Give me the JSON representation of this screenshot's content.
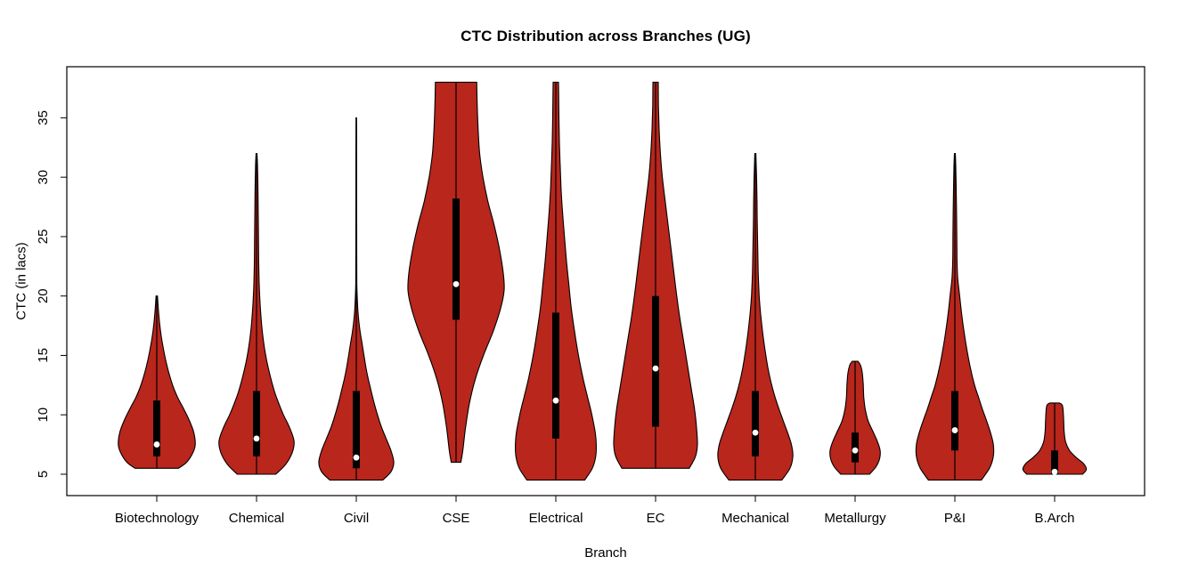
{
  "chart_data": {
    "type": "violin",
    "title": "CTC Distribution across Branches (UG)",
    "xlabel": "Branch",
    "ylabel": "CTC (in lacs)",
    "ylim": [
      3.2,
      39.3
    ],
    "yticks": [
      5,
      10,
      15,
      20,
      25,
      30,
      35
    ],
    "grid": false,
    "legend": "none",
    "colors": {
      "violin_fill": "#b8261c",
      "violin_outline": "#000000",
      "box": "#000000",
      "median_dot": "#ffffff",
      "axis": "#000000",
      "background": "#ffffff"
    },
    "categories": [
      "Biotechnology",
      "Chemical",
      "Civil",
      "CSE",
      "Electrical",
      "EC",
      "Mechanical",
      "Metallurgy",
      "P&I",
      "B.Arch"
    ],
    "series": [
      {
        "name": "Biotechnology",
        "min": 5.5,
        "q1": 6.5,
        "median": 7.5,
        "q3": 11.2,
        "max": 20,
        "shape": [
          [
            5.5,
            0.45
          ],
          [
            6,
            0.62
          ],
          [
            6.8,
            0.75
          ],
          [
            7.5,
            0.8
          ],
          [
            8.5,
            0.77
          ],
          [
            9.5,
            0.68
          ],
          [
            10.5,
            0.56
          ],
          [
            11.5,
            0.43
          ],
          [
            12.5,
            0.33
          ],
          [
            14,
            0.22
          ],
          [
            15.5,
            0.14
          ],
          [
            17,
            0.08
          ],
          [
            18.5,
            0.04
          ],
          [
            20,
            0.015
          ]
        ]
      },
      {
        "name": "Chemical",
        "min": 5.0,
        "q1": 6.5,
        "median": 8.0,
        "q3": 12.0,
        "max": 32,
        "shape": [
          [
            5,
            0.4
          ],
          [
            5.8,
            0.6
          ],
          [
            6.8,
            0.74
          ],
          [
            7.8,
            0.78
          ],
          [
            9,
            0.68
          ],
          [
            10,
            0.56
          ],
          [
            11,
            0.46
          ],
          [
            12,
            0.37
          ],
          [
            13.5,
            0.27
          ],
          [
            15,
            0.19
          ],
          [
            17,
            0.12
          ],
          [
            19,
            0.08
          ],
          [
            21,
            0.055
          ],
          [
            23,
            0.045
          ],
          [
            25,
            0.04
          ],
          [
            27,
            0.035
          ],
          [
            29,
            0.03
          ],
          [
            31,
            0.02
          ],
          [
            32,
            0.01
          ]
        ]
      },
      {
        "name": "Civil",
        "min": 4.5,
        "q1": 5.5,
        "median": 6.4,
        "q3": 12.0,
        "max": 35,
        "shape": [
          [
            4.5,
            0.55
          ],
          [
            5.2,
            0.72
          ],
          [
            6,
            0.78
          ],
          [
            7,
            0.72
          ],
          [
            8,
            0.62
          ],
          [
            9,
            0.52
          ],
          [
            10,
            0.44
          ],
          [
            11,
            0.37
          ],
          [
            12,
            0.31
          ],
          [
            13,
            0.25
          ],
          [
            14,
            0.2
          ],
          [
            15,
            0.16
          ],
          [
            16,
            0.12
          ],
          [
            17,
            0.08
          ],
          [
            18,
            0.05
          ],
          [
            19,
            0.03
          ],
          [
            21,
            0.012
          ],
          [
            24,
            0.009
          ],
          [
            28,
            0.008
          ],
          [
            32,
            0.007
          ],
          [
            35,
            0.005
          ]
        ]
      },
      {
        "name": "CSE",
        "min": 6.0,
        "q1": 18.0,
        "median": 21.0,
        "q3": 28.2,
        "max": 38,
        "shape": [
          [
            6,
            0.1
          ],
          [
            7,
            0.14
          ],
          [
            9,
            0.2
          ],
          [
            11,
            0.28
          ],
          [
            13,
            0.4
          ],
          [
            15,
            0.57
          ],
          [
            17,
            0.77
          ],
          [
            19,
            0.93
          ],
          [
            20.5,
            1.0
          ],
          [
            22,
            0.98
          ],
          [
            24,
            0.9
          ],
          [
            26,
            0.79
          ],
          [
            28,
            0.66
          ],
          [
            30,
            0.56
          ],
          [
            32,
            0.49
          ],
          [
            34,
            0.46
          ],
          [
            36,
            0.44
          ],
          [
            38,
            0.43
          ]
        ]
      },
      {
        "name": "Electrical",
        "min": 4.5,
        "q1": 8.0,
        "median": 11.2,
        "q3": 18.6,
        "max": 38,
        "shape": [
          [
            4.5,
            0.6
          ],
          [
            5.5,
            0.76
          ],
          [
            6.5,
            0.83
          ],
          [
            7.5,
            0.84
          ],
          [
            8.5,
            0.82
          ],
          [
            10,
            0.75
          ],
          [
            11.5,
            0.66
          ],
          [
            13,
            0.57
          ],
          [
            15,
            0.47
          ],
          [
            17,
            0.39
          ],
          [
            19,
            0.32
          ],
          [
            21,
            0.27
          ],
          [
            23,
            0.22
          ],
          [
            25,
            0.18
          ],
          [
            27,
            0.14
          ],
          [
            29,
            0.11
          ],
          [
            31,
            0.09
          ],
          [
            33,
            0.075
          ],
          [
            35,
            0.065
          ],
          [
            37,
            0.06
          ],
          [
            38,
            0.055
          ]
        ]
      },
      {
        "name": "EC",
        "min": 5.5,
        "q1": 9.0,
        "median": 13.9,
        "q3": 20.0,
        "max": 38,
        "shape": [
          [
            5.5,
            0.7
          ],
          [
            6.5,
            0.83
          ],
          [
            7.5,
            0.87
          ],
          [
            9,
            0.85
          ],
          [
            10.5,
            0.81
          ],
          [
            12,
            0.75
          ],
          [
            14,
            0.67
          ],
          [
            16,
            0.59
          ],
          [
            18,
            0.51
          ],
          [
            20,
            0.44
          ],
          [
            22,
            0.38
          ],
          [
            24,
            0.32
          ],
          [
            26,
            0.26
          ],
          [
            28,
            0.2
          ],
          [
            30,
            0.14
          ],
          [
            32,
            0.1
          ],
          [
            34,
            0.075
          ],
          [
            36,
            0.06
          ],
          [
            38,
            0.055
          ]
        ]
      },
      {
        "name": "Mechanical",
        "min": 4.5,
        "q1": 6.5,
        "median": 8.5,
        "q3": 12.0,
        "max": 32,
        "shape": [
          [
            4.5,
            0.55
          ],
          [
            5.5,
            0.72
          ],
          [
            6.5,
            0.78
          ],
          [
            7.5,
            0.75
          ],
          [
            8.5,
            0.67
          ],
          [
            9.5,
            0.58
          ],
          [
            10.5,
            0.49
          ],
          [
            11.5,
            0.41
          ],
          [
            12.5,
            0.34
          ],
          [
            14,
            0.26
          ],
          [
            15.5,
            0.2
          ],
          [
            17,
            0.15
          ],
          [
            18.5,
            0.11
          ],
          [
            20,
            0.08
          ],
          [
            22,
            0.06
          ],
          [
            24,
            0.05
          ],
          [
            26,
            0.04
          ],
          [
            28,
            0.035
          ],
          [
            30,
            0.025
          ],
          [
            32,
            0.012
          ]
        ]
      },
      {
        "name": "Metallurgy",
        "min": 5.0,
        "q1": 6.0,
        "median": 7.0,
        "q3": 8.5,
        "max": 14.5,
        "shape": [
          [
            5,
            0.3
          ],
          [
            5.6,
            0.43
          ],
          [
            6.3,
            0.51
          ],
          [
            7,
            0.52
          ],
          [
            7.8,
            0.46
          ],
          [
            8.6,
            0.37
          ],
          [
            9.5,
            0.27
          ],
          [
            10.5,
            0.21
          ],
          [
            11.5,
            0.18
          ],
          [
            12.5,
            0.17
          ],
          [
            13.5,
            0.15
          ],
          [
            14.2,
            0.11
          ],
          [
            14.5,
            0.06
          ]
        ]
      },
      {
        "name": "P&I",
        "min": 4.5,
        "q1": 7.0,
        "median": 8.7,
        "q3": 12.0,
        "max": 32,
        "shape": [
          [
            4.5,
            0.55
          ],
          [
            5.5,
            0.72
          ],
          [
            6.5,
            0.8
          ],
          [
            7.5,
            0.8
          ],
          [
            8.5,
            0.74
          ],
          [
            9.5,
            0.66
          ],
          [
            10.5,
            0.57
          ],
          [
            11.5,
            0.49
          ],
          [
            12.5,
            0.41
          ],
          [
            14,
            0.32
          ],
          [
            15.5,
            0.25
          ],
          [
            17,
            0.19
          ],
          [
            18.5,
            0.14
          ],
          [
            20,
            0.1
          ],
          [
            21.5,
            0.06
          ],
          [
            23,
            0.045
          ],
          [
            25,
            0.04
          ],
          [
            27,
            0.035
          ],
          [
            29,
            0.028
          ],
          [
            31,
            0.018
          ],
          [
            32,
            0.01
          ]
        ]
      },
      {
        "name": "B.Arch",
        "min": 5.0,
        "q1": 5.0,
        "median": 5.2,
        "q3": 7.0,
        "max": 11,
        "shape": [
          [
            5,
            0.58
          ],
          [
            5.4,
            0.66
          ],
          [
            5.9,
            0.6
          ],
          [
            6.4,
            0.45
          ],
          [
            7,
            0.31
          ],
          [
            7.7,
            0.23
          ],
          [
            8.5,
            0.2
          ],
          [
            9.3,
            0.19
          ],
          [
            10.2,
            0.18
          ],
          [
            10.8,
            0.16
          ],
          [
            11,
            0.1
          ]
        ]
      }
    ]
  }
}
